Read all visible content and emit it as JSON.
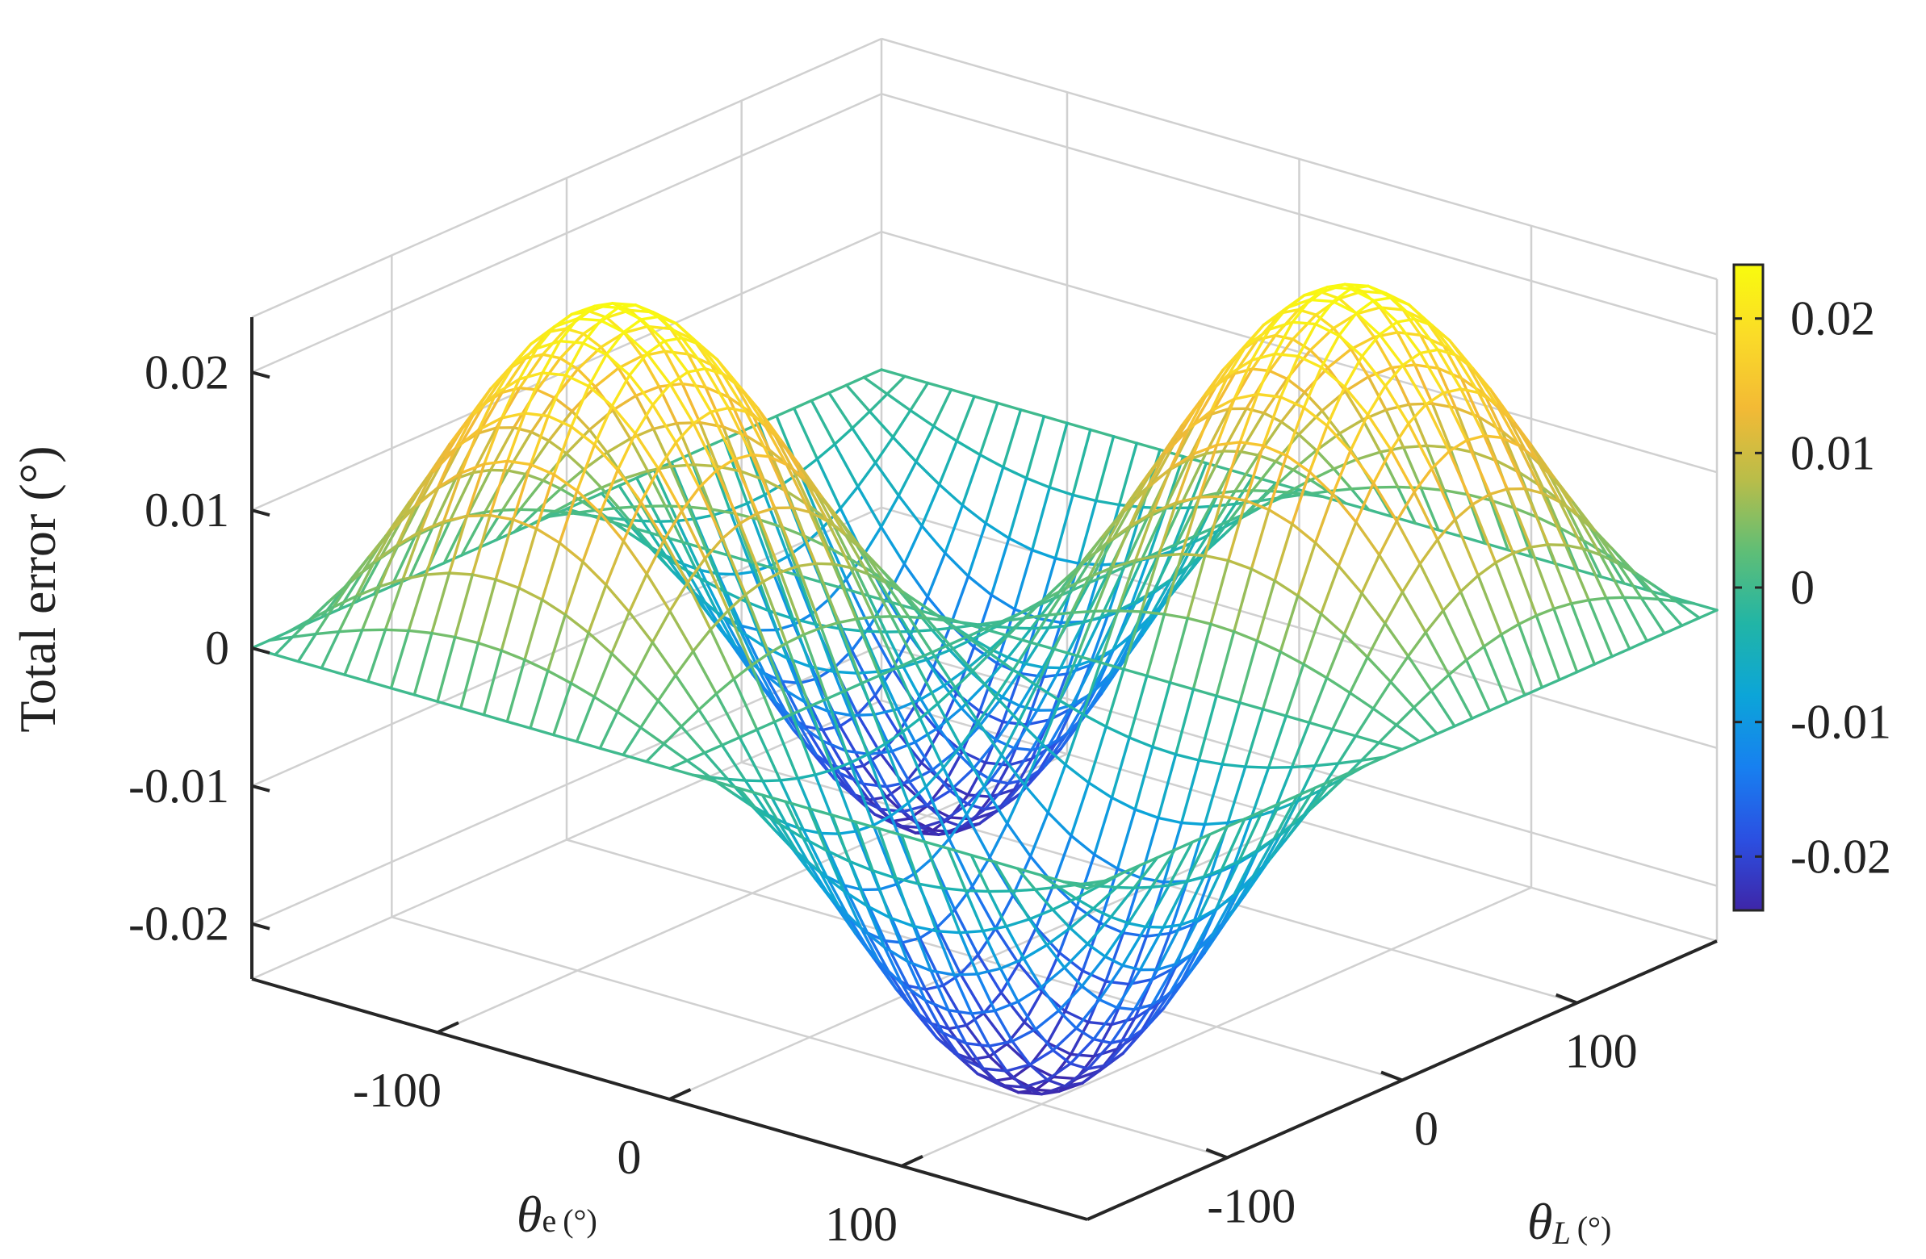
{
  "chart_data": {
    "type": "surface",
    "plot_style": "3d mesh (wireframe)",
    "function": "total error = 0.024 * sin(theta_e) * sin(theta_L) (approx.)",
    "x": {
      "label_symbol": "θ",
      "label_subscript": "e",
      "label_unit": "(°)",
      "range": [
        -180,
        180
      ],
      "ticks": [
        -100,
        0,
        100
      ],
      "tick_labels": [
        "-100",
        "0",
        "100"
      ]
    },
    "y": {
      "label_symbol": "θ",
      "label_subscript": "L",
      "label_unit": "(°)",
      "range": [
        -180,
        180
      ],
      "ticks": [
        -100,
        0,
        100
      ],
      "tick_labels": [
        "-100",
        "0",
        "100"
      ]
    },
    "z": {
      "label": "Total error (°)",
      "range": [
        -0.024,
        0.024
      ],
      "ticks": [
        -0.02,
        -0.01,
        0,
        0.01,
        0.02
      ],
      "tick_labels": [
        "-0.02",
        "-0.01",
        "0",
        "0.01",
        "0.02"
      ]
    },
    "amplitude": 0.024,
    "grid": true,
    "colormap": "parula",
    "colormap_stops": [
      "#3e26a8",
      "#2b50e2",
      "#1780f0",
      "#0ca5d8",
      "#21b5a6",
      "#5fbe76",
      "#b9bd49",
      "#f3ba35",
      "#fadb28",
      "#f9fb0e"
    ],
    "colorbar": {
      "placement": "right",
      "range": [
        -0.024,
        0.024
      ],
      "ticks": [
        -0.02,
        -0.01,
        0,
        0.01,
        0.02
      ],
      "tick_labels": [
        "-0.02",
        "-0.01",
        "0",
        "0.01",
        "0.02"
      ]
    }
  }
}
